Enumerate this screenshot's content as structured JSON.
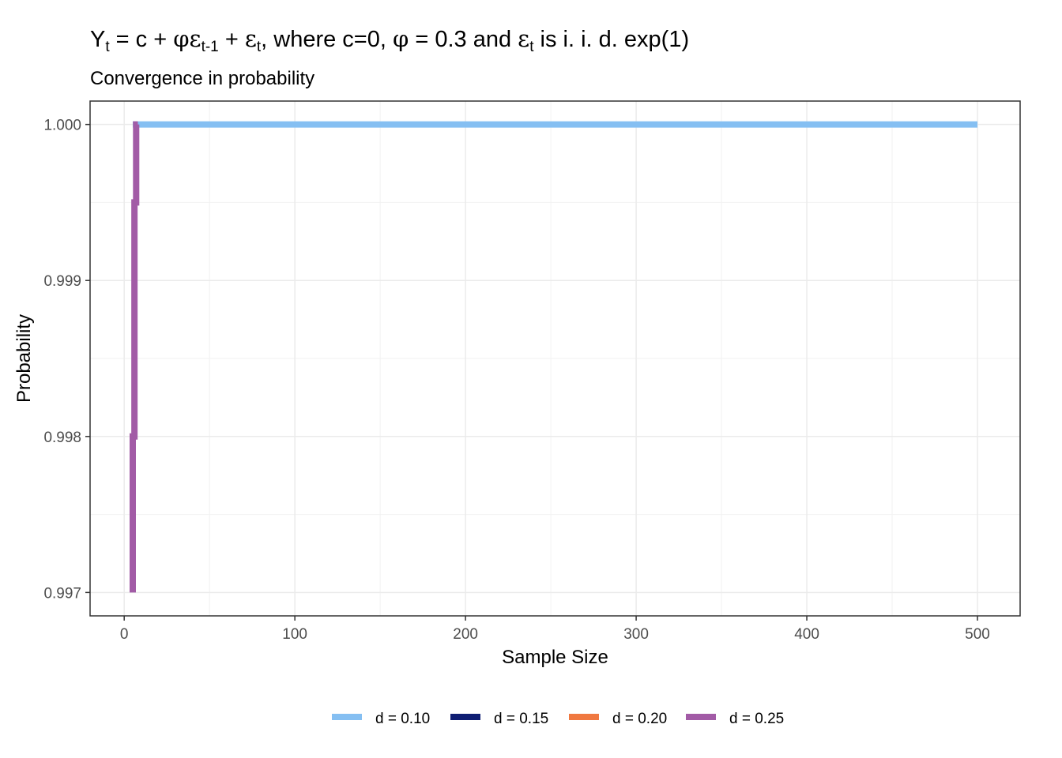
{
  "title": {
    "y": "Y",
    "t": "t",
    "eq1": " = c + ",
    "phi": "φ",
    "eps": "ε",
    "tm1": "t-1",
    "plus": " + ",
    "rest1": ", where c=0, ",
    "eq2": " = 0.3 and ",
    "rest2": " is i. i. d. exp(1)"
  },
  "subtitle": "Convergence in probability",
  "chart_data": {
    "type": "line",
    "xlabel": "Sample Size",
    "ylabel": "Probability",
    "xlim": [
      -20,
      525
    ],
    "ylim": [
      0.99685,
      1.00015
    ],
    "x_ticks": [
      0,
      100,
      200,
      300,
      400,
      500
    ],
    "x_tick_labels": [
      "0",
      "100",
      "200",
      "300",
      "400",
      "500"
    ],
    "y_ticks": [
      0.997,
      0.998,
      0.999,
      1.0
    ],
    "y_tick_labels": [
      "0.997",
      "0.998",
      "0.999",
      "1.000"
    ],
    "grid": true,
    "legend_position": "bottom",
    "series": [
      {
        "name": "d = 0.10",
        "color": "#85bff2",
        "x": [
          5,
          500
        ],
        "y": [
          1.0,
          1.0
        ]
      },
      {
        "name": "d = 0.15",
        "color": "#0f1e73",
        "x": [],
        "y": []
      },
      {
        "name": "d = 0.20",
        "color": "#f07840",
        "x": [],
        "y": []
      },
      {
        "name": "d = 0.25",
        "color": "#a25ba6",
        "x": [
          5,
          5,
          6,
          6,
          7,
          7,
          8
        ],
        "y": [
          0.997,
          0.998,
          0.998,
          0.9995,
          0.9995,
          1.0,
          1.0
        ]
      }
    ]
  }
}
